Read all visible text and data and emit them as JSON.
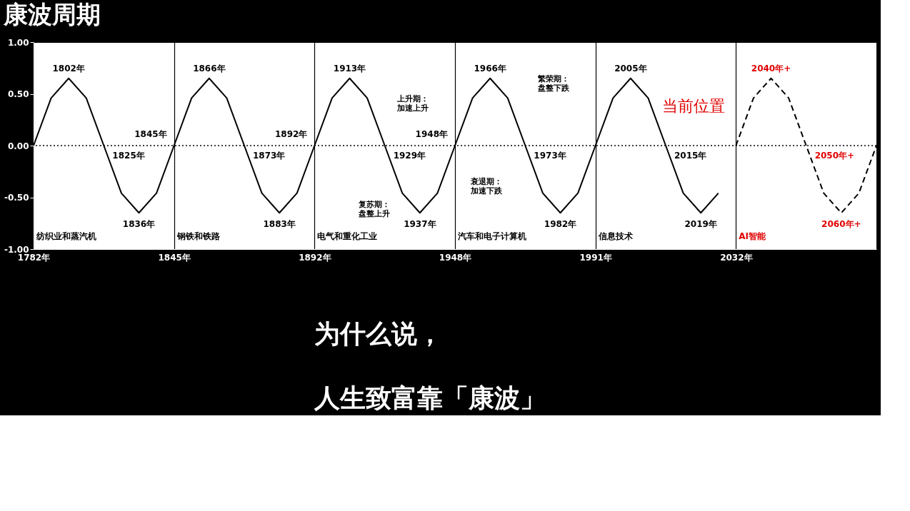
{
  "chart_data": {
    "type": "line",
    "title": "康波周期",
    "categories": [
      "1782年",
      null,
      null,
      null,
      null,
      null,
      null,
      null,
      "1845年",
      null,
      null,
      null,
      null,
      null,
      null,
      null,
      "1892年",
      null,
      null,
      null,
      null,
      null,
      null,
      null,
      "1948年",
      null,
      null,
      null,
      null,
      null,
      null,
      null,
      "1991年",
      null,
      null,
      null,
      null,
      null,
      null,
      null,
      "2032年",
      null,
      null,
      null,
      null,
      null,
      null,
      null,
      null
    ],
    "series": [
      {
        "color": "#000000",
        "line_style": "solid",
        "values": [
          0,
          0.46,
          0.65,
          0.46,
          0,
          -0.46,
          -0.65,
          -0.46,
          0,
          0.46,
          0.65,
          0.46,
          0,
          -0.46,
          -0.65,
          -0.46,
          0,
          0.46,
          0.65,
          0.46,
          0,
          -0.46,
          -0.65,
          -0.46,
          0,
          0.46,
          0.65,
          0.46,
          0,
          -0.46,
          -0.65,
          -0.46,
          0,
          0.46,
          0.65,
          0.46,
          0,
          -0.46,
          -0.65,
          -0.46,
          null,
          null,
          null,
          null,
          null,
          null,
          null,
          null,
          null
        ]
      },
      {
        "color": "#000000",
        "line_style": "dashed",
        "values": [
          null,
          null,
          null,
          null,
          null,
          null,
          null,
          null,
          null,
          null,
          null,
          null,
          null,
          null,
          null,
          null,
          null,
          null,
          null,
          null,
          null,
          null,
          null,
          null,
          null,
          null,
          null,
          null,
          null,
          null,
          null,
          null,
          null,
          null,
          null,
          null,
          null,
          null,
          null,
          null,
          0,
          0.46,
          0.65,
          0.46,
          0,
          -0.46,
          -0.65,
          -0.46,
          0
        ]
      }
    ],
    "ylim": [
      -1,
      1
    ],
    "yticks": [
      {
        "value": -1,
        "label": "-1.00"
      },
      {
        "value": -0.5,
        "label": "-0.50"
      },
      {
        "value": 0,
        "label": "0.00"
      },
      {
        "value": 0.5,
        "label": "0.50"
      },
      {
        "value": 1,
        "label": "1.00"
      }
    ],
    "grid": "x",
    "ref_lines": [
      {
        "axis": "y",
        "value": 0,
        "line_style": "dotted",
        "color": "#000000"
      }
    ],
    "annotations": [
      "1802年",
      "1825年",
      "1836年",
      "1845年",
      "1866年",
      "1873年",
      "1883年",
      "1892年",
      "1913年",
      "1929年",
      "1937年",
      "1948年",
      "1966年",
      "1973年",
      "1982年",
      "2005年",
      "2015年",
      "2019年",
      "2040年+",
      "2050年+",
      "2060年+",
      "纺织业和蒸汽机",
      "钢铁和铁路",
      "电气和重化工业",
      "汽车和电子计算机",
      "信息技术",
      "AI智能",
      "上升期：加速上升",
      "繁荣期：盘整下跌",
      "复苏期：盘整上升",
      "衰退期：加速下跌",
      "当前位置",
      "为什么说，",
      "人生致富靠「康波」"
    ]
  }
}
